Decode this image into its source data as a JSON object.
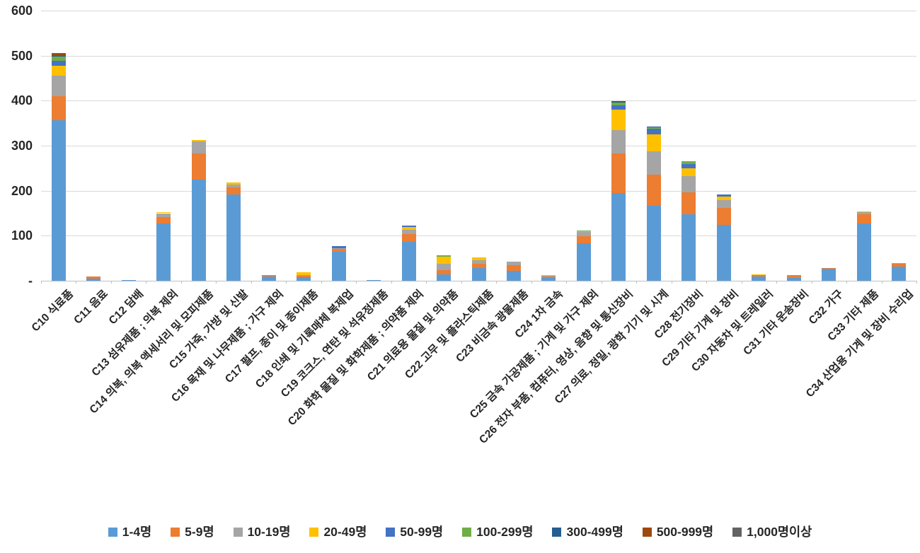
{
  "chart_data": {
    "type": "bar",
    "stacked": true,
    "title": "",
    "xlabel": "",
    "ylabel": "",
    "grid": true,
    "legend_position": "bottom",
    "y_axis": {
      "min": 0,
      "max": 600,
      "step": 100,
      "tick_labels_bottom_to_top": [
        "-",
        "100",
        "200",
        "300",
        "400",
        "500",
        "600"
      ]
    },
    "categories": [
      "C10 식료품",
      "C11 음료",
      "C12 담배",
      "C13 섬유제품 ; 의복 제외",
      "C14 의복, 의복 액세서리 및 모피제품",
      "C15 가죽, 가방 및 신발",
      "C16 목재 및 나무제품 ; 가구 제외",
      "C17 펄프, 종이 및 종이제품",
      "C18 인쇄 및 기록매체 복제업",
      "C19 코크스, 연탄 및 석유정제품",
      "C20 화학 물질 및 화학제품 ; 의약품 제외",
      "C21 의료용 물질 및 의약품",
      "C22 고무 및 플라스틱제품",
      "C23 비금속 광물제품",
      "C24 1차 금속",
      "C25 금속 가공제품 ; 기계 및 가구 제외",
      "C26 전자 부품, 컴퓨터, 영상, 음향 및 통신장비",
      "C27 의료, 정밀, 광학 기기 및 시계",
      "C28 전기장비",
      "C29 기타 기계 및 장비",
      "C30 자동차 및 트레일러",
      "C31 기타 운송장비",
      "C32 가구",
      "C33 기타 제품",
      "C34 산업용 기계 및 장비 수리업"
    ],
    "series": [
      {
        "name": "1-4명",
        "color": "#5B9BD5",
        "values": [
          356,
          5,
          1,
          127,
          224,
          192,
          9,
          8,
          65,
          1,
          86,
          14,
          29,
          22,
          6,
          83,
          195,
          167,
          148,
          124,
          10,
          7,
          26,
          127,
          31
        ]
      },
      {
        "name": "5-9명",
        "color": "#ED7D31",
        "values": [
          54,
          4,
          0,
          14,
          58,
          16,
          3,
          3,
          6,
          0,
          17,
          10,
          9,
          13,
          3,
          16,
          88,
          68,
          49,
          38,
          2,
          5,
          2,
          20,
          6
        ]
      },
      {
        "name": "10-19명",
        "color": "#A5A5A5",
        "values": [
          45,
          0,
          0,
          9,
          27,
          5,
          0,
          2,
          2,
          0,
          10,
          13,
          7,
          8,
          2,
          9,
          51,
          53,
          36,
          17,
          0,
          0,
          0,
          5,
          2
        ]
      },
      {
        "name": "20-49명",
        "color": "#FFC000",
        "values": [
          22,
          0,
          0,
          2,
          4,
          5,
          0,
          6,
          0,
          0,
          6,
          16,
          7,
          0,
          1,
          2,
          46,
          37,
          17,
          8,
          2,
          0,
          0,
          2,
          0
        ]
      },
      {
        "name": "50-99명",
        "color": "#4472C4",
        "values": [
          12,
          0,
          0,
          0,
          0,
          0,
          0,
          0,
          4,
          0,
          4,
          0,
          0,
          0,
          0,
          0,
          10,
          13,
          9,
          5,
          0,
          0,
          0,
          0,
          0
        ]
      },
      {
        "name": "100-299명",
        "color": "#70AD47",
        "values": [
          9,
          0,
          0,
          0,
          0,
          0,
          0,
          0,
          0,
          0,
          0,
          4,
          0,
          0,
          0,
          2,
          6,
          3,
          7,
          0,
          0,
          0,
          0,
          0,
          0
        ]
      },
      {
        "name": "300-499명",
        "color": "#255E91",
        "values": [
          2,
          0,
          0,
          0,
          0,
          0,
          0,
          0,
          0,
          0,
          0,
          0,
          0,
          0,
          0,
          0,
          3,
          2,
          0,
          0,
          0,
          0,
          0,
          0,
          0
        ]
      },
      {
        "name": "500-999명",
        "color": "#9E480E",
        "values": [
          4,
          0,
          0,
          0,
          0,
          0,
          0,
          0,
          0,
          0,
          0,
          0,
          0,
          0,
          0,
          0,
          0,
          0,
          0,
          0,
          0,
          0,
          0,
          0,
          0
        ]
      },
      {
        "name": "1,000명이상",
        "color": "#636363",
        "values": [
          2,
          0,
          0,
          0,
          0,
          0,
          0,
          0,
          0,
          0,
          0,
          0,
          0,
          0,
          0,
          0,
          0,
          0,
          0,
          0,
          0,
          0,
          0,
          0,
          0
        ]
      }
    ]
  }
}
